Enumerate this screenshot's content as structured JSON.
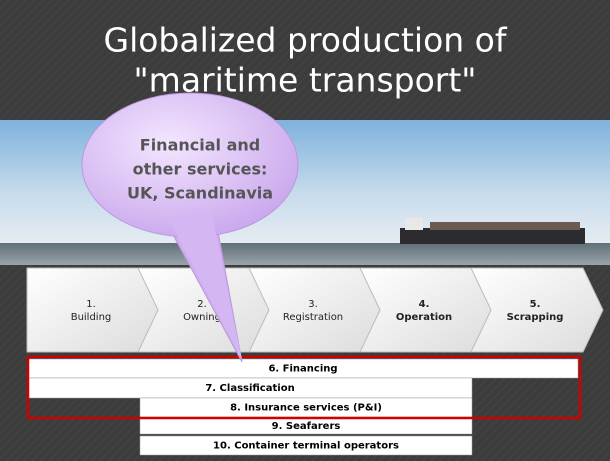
{
  "title": {
    "lines": [
      "Globalized production of",
      "\"maritime transport\""
    ]
  },
  "callout": {
    "lines": [
      "Financial and",
      "other services:",
      "UK, Scandinavia"
    ]
  },
  "steps": [
    {
      "number": "1.",
      "name": "Building"
    },
    {
      "number": "2.",
      "name": "Owning"
    },
    {
      "number": "3.",
      "name": "Registration"
    },
    {
      "number": "4.",
      "name": "Operation"
    },
    {
      "number": "5.",
      "name": "Scrapping"
    }
  ],
  "bars": [
    "6. Financing",
    "7. Classification",
    "8. Insurance services (P&I)",
    "9. Seafarers",
    "10. Container terminal operators"
  ]
}
